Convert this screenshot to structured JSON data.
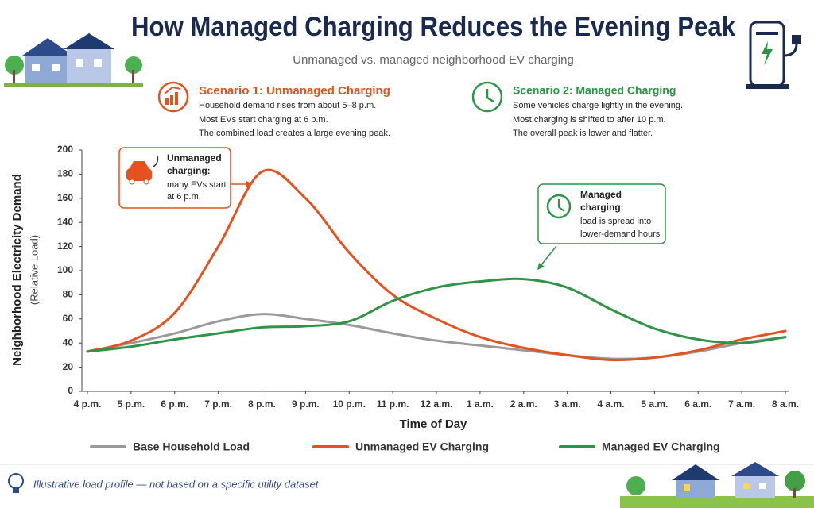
{
  "title": "How Managed Charging Reduces the Evening Peak",
  "subtitle": "Unmanaged vs. managed neighborhood EV charging",
  "scenarios": [
    {
      "title": "Scenario 1: Unmanaged Charging",
      "lines": [
        "Household demand rises from about 5–8 p.m.",
        "Most EVs start charging at 6 p.m.",
        "The combined load creates a large evening peak."
      ]
    },
    {
      "title": "Scenario 2: Managed Charging",
      "lines": [
        "Some vehicles charge lightly in the evening.",
        "Most charging is shifted to after 10 p.m.",
        "The overall peak is lower and flatter."
      ]
    }
  ],
  "chart_data": {
    "type": "line",
    "x_label": "Time of Day",
    "y_label": "Neighborhood Electricity Demand",
    "y_label_sub": "(Relative Load)",
    "categories": [
      "4 p.m.",
      "5 p.m.",
      "6 p.m.",
      "7 p.m.",
      "8 p.m.",
      "9 p.m.",
      "10 p.m.",
      "11 p.m.",
      "12 a.m.",
      "1 a.m.",
      "2 a.m.",
      "3 a.m.",
      "4 a.m.",
      "5 a.m.",
      "6 a.m.",
      "7 a.m.",
      "8 a.m."
    ],
    "series": [
      {
        "name": "Base Household Load",
        "color": "#9a9a9a",
        "values": [
          33,
          40,
          48,
          58,
          64,
          60,
          55,
          48,
          42,
          38,
          34,
          30,
          27,
          28,
          33,
          40,
          45
        ]
      },
      {
        "name": "Unmanaged EV Charging",
        "color": "#e4521f",
        "values": [
          33,
          42,
          65,
          120,
          182,
          160,
          115,
          80,
          60,
          45,
          36,
          30,
          26,
          28,
          34,
          43,
          50
        ]
      },
      {
        "name": "Managed EV Charging",
        "color": "#2e9446",
        "values": [
          33,
          37,
          43,
          48,
          53,
          54,
          58,
          75,
          86,
          91,
          93,
          86,
          68,
          52,
          43,
          40,
          45
        ]
      }
    ],
    "ylim": [
      0,
      200
    ],
    "yticks": [
      0,
      20,
      40,
      60,
      80,
      100,
      120,
      140,
      160,
      180,
      200
    ],
    "annotations": [
      {
        "title_lines": [
          "Unmanaged",
          "charging:"
        ],
        "lines": [
          "many EVs start",
          "at 6 p.m."
        ]
      },
      {
        "title_lines": [
          "Managed",
          "charging:"
        ],
        "lines": [
          "load is spread into",
          "lower-demand hours"
        ]
      }
    ]
  },
  "footnote": "Illustrative load profile — not based on a specific utility dataset"
}
